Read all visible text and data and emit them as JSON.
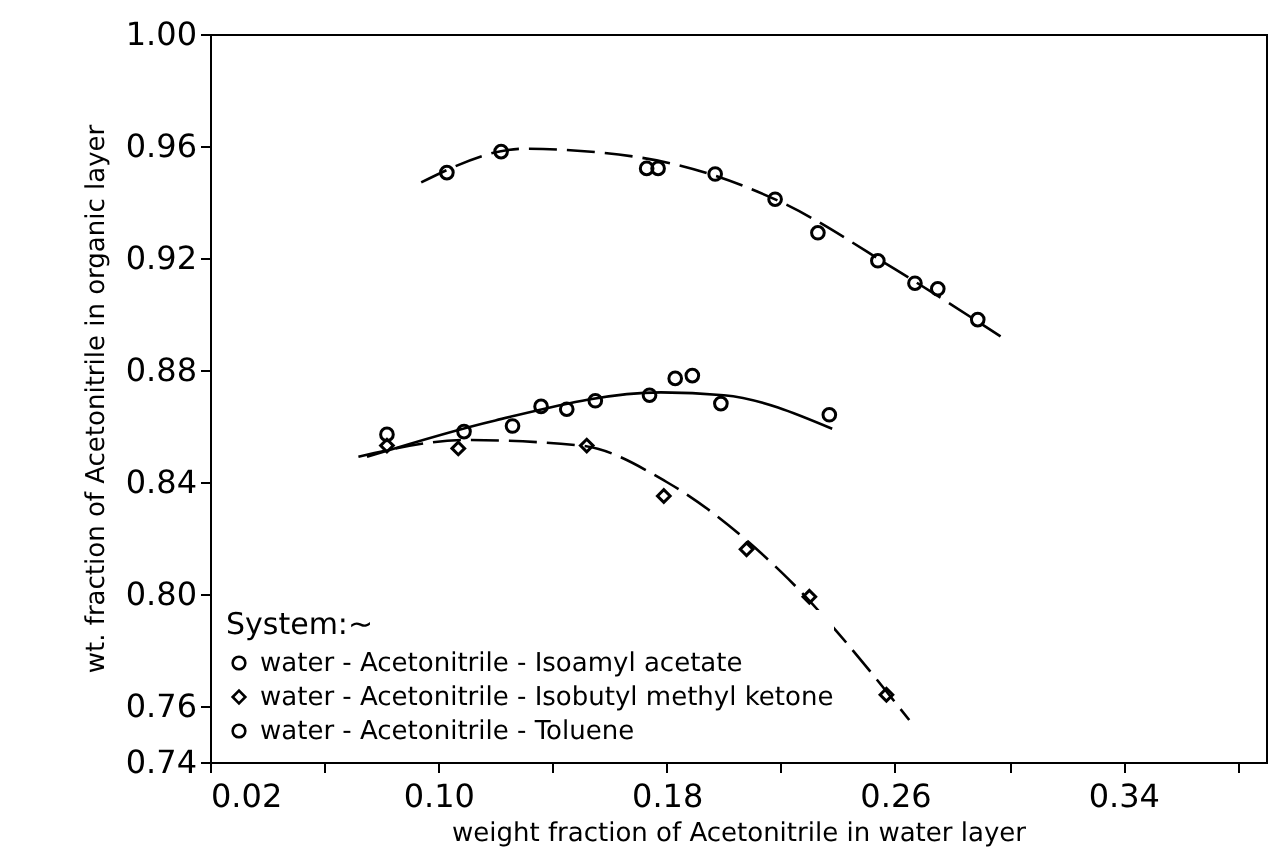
{
  "chart_data": {
    "type": "scatter",
    "xlabel": "weight fraction of Acetonitrile in water layer",
    "ylabel": "wt. fraction of Acetonitrile in organic layer",
    "legend_title": "System:~",
    "xlim": [
      0.02,
      0.39
    ],
    "ylim": [
      0.74,
      1.0
    ],
    "xticks": [
      {
        "value": 0.02,
        "label": "0.02"
      },
      {
        "value": 0.06,
        "label": null
      },
      {
        "value": 0.1,
        "label": "0.10"
      },
      {
        "value": 0.14,
        "label": null
      },
      {
        "value": 0.18,
        "label": "0.18"
      },
      {
        "value": 0.22,
        "label": null
      },
      {
        "value": 0.26,
        "label": "0.26"
      },
      {
        "value": 0.3,
        "label": null
      },
      {
        "value": 0.34,
        "label": "0.34"
      },
      {
        "value": 0.38,
        "label": null
      }
    ],
    "yticks": [
      {
        "value": 0.74,
        "label": "0.74"
      },
      {
        "value": 0.76,
        "label": "0.76"
      },
      {
        "value": 0.8,
        "label": "0.80"
      },
      {
        "value": 0.84,
        "label": "0.84"
      },
      {
        "value": 0.88,
        "label": "0.88"
      },
      {
        "value": 0.92,
        "label": "0.92"
      },
      {
        "value": 0.96,
        "label": "0.96"
      },
      {
        "value": 1.0,
        "label": "1.00"
      }
    ],
    "legend": "bottom left",
    "grid": false,
    "series": [
      {
        "name": "water - Acetonitrile - Isoamyl acetate",
        "color": "#000000",
        "marker": "circle",
        "x": [
          0.082,
          0.109,
          0.126,
          0.136,
          0.145,
          0.155,
          0.174,
          0.183,
          0.189,
          0.199,
          0.237
        ],
        "values": [
          0.857,
          0.858,
          0.86,
          0.867,
          0.866,
          0.869,
          0.871,
          0.877,
          0.878,
          0.868,
          0.864
        ]
      },
      {
        "name": "water - Acetonitrile - Isobutyl methyl ketone",
        "color": "#000000",
        "marker": "diamond",
        "x": [
          0.082,
          0.107,
          0.152,
          0.179,
          0.208,
          0.23,
          0.257
        ],
        "values": [
          0.853,
          0.852,
          0.853,
          0.835,
          0.816,
          0.799,
          0.764
        ]
      },
      {
        "name": "water - Acetonitrile - Toluene",
        "color": "#000000",
        "marker": "circle",
        "x": [
          0.103,
          0.122,
          0.173,
          0.177,
          0.197,
          0.218,
          0.233,
          0.254,
          0.267,
          0.275,
          0.289
        ],
        "values": [
          0.9505,
          0.958,
          0.952,
          0.952,
          0.95,
          0.941,
          0.929,
          0.919,
          0.911,
          0.909,
          0.898
        ]
      },
      {
        "type": "line",
        "color": "#000000",
        "line_style": "solid",
        "x": [
          0.075,
          0.12,
          0.178,
          0.2,
          0.238
        ],
        "values": [
          0.849,
          0.862,
          0.872,
          0.871,
          0.859
        ]
      },
      {
        "type": "line",
        "color": "#000000",
        "line_style": "dashed",
        "x": [
          0.072,
          0.11,
          0.15,
          0.18,
          0.22,
          0.265
        ],
        "values": [
          0.849,
          0.855,
          0.853,
          0.84,
          0.808,
          0.755
        ]
      },
      {
        "type": "line",
        "color": "#000000",
        "line_style": "dashed",
        "x": [
          0.094,
          0.13,
          0.17,
          0.22,
          0.26,
          0.297
        ],
        "values": [
          0.947,
          0.959,
          0.956,
          0.94,
          0.916,
          0.892
        ]
      }
    ]
  }
}
